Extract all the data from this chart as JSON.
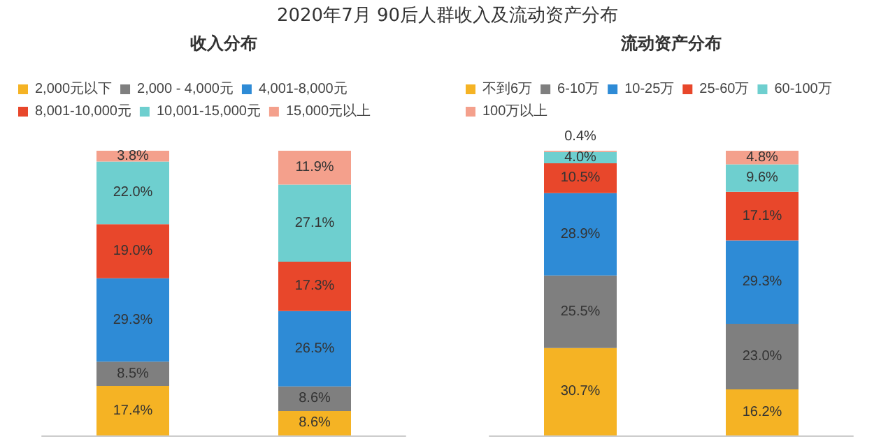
{
  "chart_data": [
    {
      "type": "bar",
      "title": "2020年7月 90后人群收入及流动资产分布",
      "subtitle": "收入分布",
      "stacked": true,
      "legend": "top",
      "categories": [
        null,
        null
      ],
      "series": [
        {
          "name": "2,000元以下",
          "color": "#f5b324",
          "values": [
            17.4,
            8.6
          ],
          "value_labels": [
            "17.4%",
            "8.6%"
          ]
        },
        {
          "name": "2,000 - 4,000元",
          "color": "#7f7f7f",
          "values": [
            8.5,
            8.6
          ],
          "value_labels": [
            "8.5%",
            "8.6%"
          ]
        },
        {
          "name": "4,001-8,000元",
          "color": "#2e8bd6",
          "values": [
            29.3,
            26.5
          ],
          "value_labels": [
            "29.3%",
            "26.5%"
          ]
        },
        {
          "name": "8,001-10,000元",
          "color": "#e8472b",
          "values": [
            19.0,
            17.3
          ],
          "value_labels": [
            "19.0%",
            "17.3%"
          ]
        },
        {
          "name": "10,001-15,000元",
          "color": "#6ecfcf",
          "values": [
            22.0,
            27.1
          ],
          "value_labels": [
            "22.0%",
            "27.1%"
          ]
        },
        {
          "name": "15,000元以上",
          "color": "#f4a08c",
          "values": [
            3.8,
            11.9
          ],
          "value_labels": [
            "3.8%",
            "11.9%"
          ]
        }
      ]
    },
    {
      "type": "bar",
      "title": "流动资产分布",
      "stacked": true,
      "legend": "top",
      "categories": [
        null,
        null
      ],
      "series": [
        {
          "name": "不到6万",
          "color": "#f5b324",
          "values": [
            30.7,
            16.2
          ],
          "value_labels": [
            "30.7%",
            "16.2%"
          ]
        },
        {
          "name": "6-10万",
          "color": "#7f7f7f",
          "values": [
            25.5,
            23.0
          ],
          "value_labels": [
            "25.5%",
            "23.0%"
          ]
        },
        {
          "name": "10-25万",
          "color": "#2e8bd6",
          "values": [
            28.9,
            29.3
          ],
          "value_labels": [
            "28.9%",
            "29.3%"
          ]
        },
        {
          "name": "25-60万",
          "color": "#e8472b",
          "values": [
            10.5,
            17.1
          ],
          "value_labels": [
            "10.5%",
            "17.1%"
          ]
        },
        {
          "name": "60-100万",
          "color": "#6ecfcf",
          "values": [
            4.0,
            9.6
          ],
          "value_labels": [
            "4.0%",
            "9.6%"
          ]
        },
        {
          "name": "100万以上",
          "color": "#f4a08c",
          "values": [
            0.4,
            4.8
          ],
          "value_labels": [
            "0.4%",
            "4.8%"
          ]
        }
      ]
    }
  ]
}
